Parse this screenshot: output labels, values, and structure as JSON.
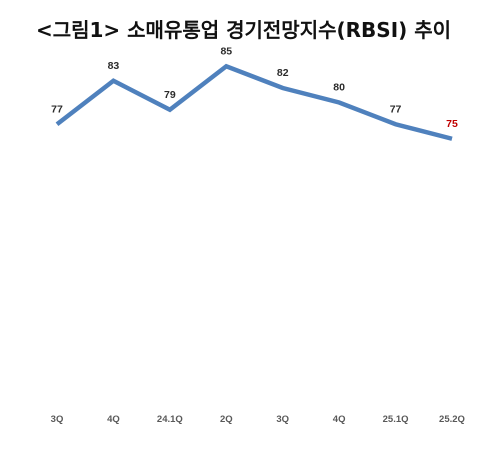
{
  "chart_data": {
    "type": "line",
    "title": "<그림1> 소매유통업 경기전망지수(RBSI) 추이",
    "categories": [
      "3Q",
      "4Q",
      "24.1Q",
      "2Q",
      "3Q",
      "4Q",
      "25.1Q",
      "25.2Q"
    ],
    "series": [
      {
        "values": [
          77,
          83,
          79,
          85,
          82,
          80,
          77,
          75
        ],
        "color": "#4f81bd"
      }
    ],
    "data_labels": [
      "77",
      "83",
      "79",
      "85",
      "82",
      "80",
      "77",
      "75"
    ],
    "highlight_color": "#c00000",
    "highlight_index": 7,
    "ylim": [
      30,
      90
    ],
    "grid": false,
    "legend": "none",
    "xlabel": "",
    "ylabel": ""
  }
}
